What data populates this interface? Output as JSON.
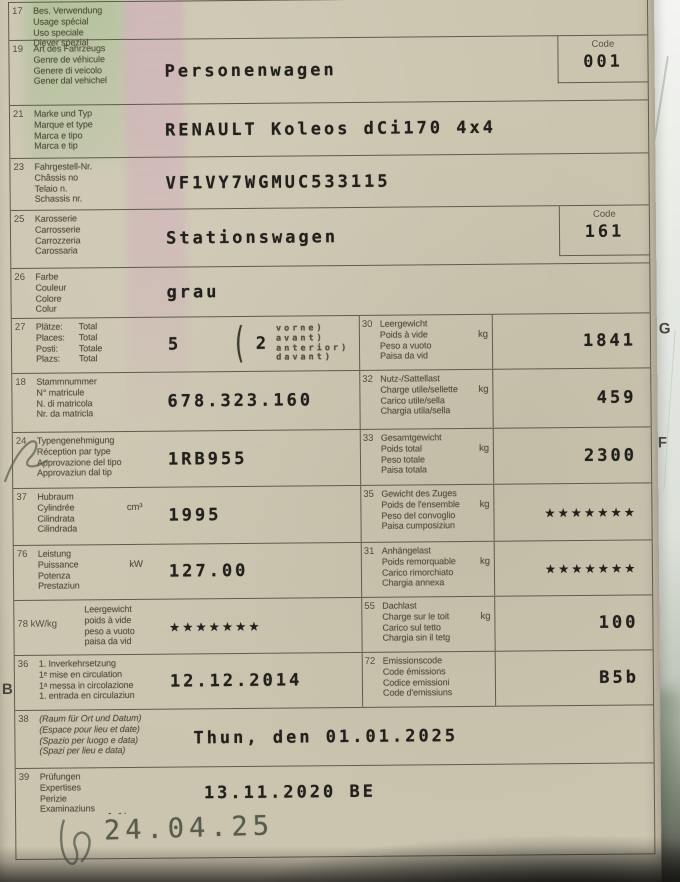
{
  "margin_letters": {
    "right_top": "G",
    "right_mid": "F",
    "left": "B"
  },
  "rows": {
    "r17": {
      "num": "17",
      "labels": [
        "Bes. Verwendung",
        "Usage spécial",
        "Uso speciale",
        "Diever spezial"
      ],
      "value": ""
    },
    "r19": {
      "num": "19",
      "labels": [
        "Art des Fahrzeugs",
        "Genre de véhicule",
        "Genere di veicolo",
        "Gener dal vehichel"
      ],
      "value": "Personenwagen",
      "code_label": "Code",
      "code_value": "001"
    },
    "r21": {
      "num": "21",
      "labels": [
        "Marke und Typ",
        "Marque et type",
        "Marca e tipo",
        "Marca e tip"
      ],
      "value": "RENAULT Koleos dCi170 4x4"
    },
    "r23": {
      "num": "23",
      "labels": [
        "Fahrgestell-Nr.",
        "Châssis no",
        "Telaio n.",
        "Schassis nr."
      ],
      "value": "VF1VY7WGMUC533115"
    },
    "r25": {
      "num": "25",
      "labels": [
        "Karosserie",
        "Carrosserie",
        "Carrozzeria",
        "Carossaria"
      ],
      "value": "Stationswagen",
      "code_label": "Code",
      "code_value": "161"
    },
    "r26": {
      "num": "26",
      "labels": [
        "Farbe",
        "Couleur",
        "Colore",
        "Colur"
      ],
      "value": "grau"
    },
    "r27": {
      "num": "27",
      "labels_col1": [
        "Plätze:",
        "Places:",
        "Posti:",
        "Plazs:"
      ],
      "labels_col2": [
        "Total",
        "Total",
        "Totale",
        "Total"
      ],
      "total_value": "5",
      "paren": "(",
      "front_value": "2",
      "front_labels": [
        "vorne)",
        "avant)",
        "anterior)",
        "davant)"
      ]
    },
    "r18": {
      "num": "18",
      "labels": [
        "Stammnummer",
        "N° matricule",
        "N. di matricola",
        "Nr. da matricla"
      ],
      "value": "678.323.160"
    },
    "r24": {
      "num": "24",
      "labels": [
        "Typengenehmigung",
        "Réception par type",
        "Approvazione del tipo",
        "Approvaziun dal tip"
      ],
      "value": "1RB955"
    },
    "r37": {
      "num": "37",
      "labels": [
        "Hubraum",
        "Cylindrée",
        "Cilindrata",
        "Cilindrada"
      ],
      "unit": "cm³",
      "value": "1995"
    },
    "r76": {
      "num": "76",
      "labels": [
        "Leistung",
        "Puissance",
        "Potenza",
        "Prestaziun"
      ],
      "unit": "kW",
      "value": "127.00"
    },
    "r78": {
      "num": "78 kW/kg",
      "labels": [
        "Leergewicht",
        "poids à vide",
        "peso a vuoto",
        "paisa da vid"
      ],
      "value": "★★★★★★★"
    },
    "r36": {
      "num": "36",
      "labels": [
        "1. Inverkehrsetzung",
        "1ᵉ mise en circulation",
        "1ᵃ messa in circolazione",
        "1. entrada en circulaziun"
      ],
      "value": "12.12.2014"
    },
    "r38": {
      "num": "38",
      "labels": [
        "(Raum für Ort und Datum)",
        "(Espace pour lieu et date)",
        "(Spazio per luogo e data)",
        "(Spazi per lieu e data)"
      ],
      "value": "Thun, den 01.01.2025"
    },
    "r39": {
      "num": "39",
      "labels": [
        "Prüfungen",
        "Expertises",
        "Perizie",
        "Examinaziuns"
      ],
      "value": "13.11.2020 BE",
      "pen_marks": "- -·",
      "stamp_date": "24.04.25"
    },
    "r30": {
      "num": "30",
      "labels": [
        "Leergewicht",
        "Poids à vide",
        "Peso a vuoto",
        "Paisa da vid"
      ],
      "unit": "kg",
      "value": "1841"
    },
    "r32": {
      "num": "32",
      "labels": [
        "Nutz-/Sattellast",
        "Charge utile/sellette",
        "Carico utile/sella",
        "Chargia utila/sella"
      ],
      "unit": "kg",
      "value": "459"
    },
    "r33": {
      "num": "33",
      "labels": [
        "Gesamtgewicht",
        "Poids total",
        "Peso totale",
        "Paisa totala"
      ],
      "unit": "kg",
      "value": "2300"
    },
    "r35": {
      "num": "35",
      "labels": [
        "Gewicht des Zuges",
        "Poids de l'ensemble",
        "Peso del convoglio",
        "Paisa cumposiziun"
      ],
      "unit": "kg",
      "value": "★★★★★★★"
    },
    "r31": {
      "num": "31",
      "labels": [
        "Anhängelast",
        "Poids remorquable",
        "Carico rimorchiato",
        "Chargia annexa"
      ],
      "unit": "kg",
      "value": "★★★★★★★"
    },
    "r55": {
      "num": "55",
      "labels": [
        "Dachlast",
        "Charge sur le toit",
        "Carico sul tetto",
        "Chargia sin il tetg"
      ],
      "unit": "kg",
      "value": "100"
    },
    "r72": {
      "num": "72",
      "labels": [
        "Emissionscode",
        "Code émissions",
        "Codice emissioni",
        "Code d'emissiuns"
      ],
      "value": "B5b"
    }
  },
  "colors": {
    "paper": "#cbc5af",
    "line": "#5f5c4e",
    "value_text": "#21201c",
    "label_text": "#55513f",
    "stamp": "#565b4c"
  }
}
